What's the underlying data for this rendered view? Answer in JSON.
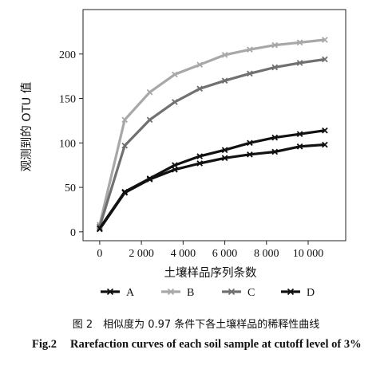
{
  "chart_data": {
    "type": "line",
    "xlabel": "土壤样品序列条数",
    "ylabel": "观测到的 OTU 值",
    "xlim": [
      -800,
      11800
    ],
    "ylim": [
      -10,
      250
    ],
    "xticks": [
      0,
      2000,
      4000,
      6000,
      8000,
      10000
    ],
    "xtick_labels": [
      "0",
      "2 000",
      "4 000",
      "6 000",
      "8 000",
      "10 000"
    ],
    "yticks": [
      0,
      50,
      100,
      150,
      200
    ],
    "ytick_labels": [
      "0",
      "50",
      "100",
      "150",
      "200"
    ],
    "grid": false,
    "legend_position": "bottom",
    "series": [
      {
        "name": "A",
        "color": "#111111",
        "x": [
          0,
          1200,
          2400,
          3600,
          4800,
          6000,
          7200,
          8400,
          9600,
          10800
        ],
        "y": [
          3,
          44,
          59,
          70,
          77,
          83,
          87,
          90,
          96,
          98
        ]
      },
      {
        "name": "B",
        "color": "#a8a8a8",
        "x": [
          0,
          1200,
          2400,
          3600,
          4800,
          6000,
          7200,
          8400,
          9600,
          10800
        ],
        "y": [
          8,
          126,
          157,
          177,
          188,
          199,
          205,
          210,
          213,
          216
        ]
      },
      {
        "name": "C",
        "color": "#707070",
        "x": [
          0,
          1200,
          2400,
          3600,
          4800,
          6000,
          7200,
          8400,
          9600,
          10800
        ],
        "y": [
          6,
          97,
          126,
          146,
          161,
          170,
          178,
          185,
          190,
          194
        ]
      },
      {
        "name": "D",
        "color": "#111111",
        "x": [
          0,
          1200,
          2400,
          3600,
          4800,
          6000,
          7200,
          8400,
          9600,
          10800
        ],
        "y": [
          4,
          45,
          60,
          75,
          85,
          92,
          100,
          106,
          110,
          114
        ]
      }
    ]
  },
  "caption": {
    "cn": "图 2　相似度为 0.97 条件下各土壤样品的稀释性曲线",
    "en_label": "Fig.2",
    "en_text": "Rarefaction curves of each soil sample at cutoff level of 3%"
  }
}
